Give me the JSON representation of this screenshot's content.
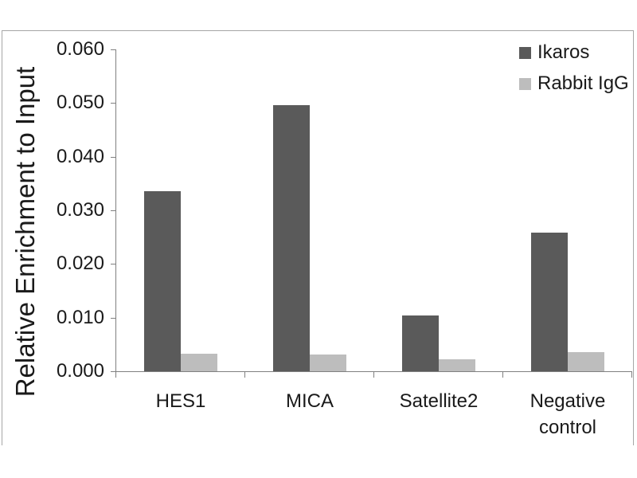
{
  "chart_data": {
    "type": "bar",
    "title": "",
    "xlabel": "",
    "ylabel": "Relative Enrichment to Input",
    "categories": [
      "HES1",
      "MICA",
      "Satellite2",
      "Negative control"
    ],
    "series": [
      {
        "name": "Ikaros",
        "color": "#5a5a5a",
        "values": [
          0.0335,
          0.0496,
          0.0104,
          0.0258
        ]
      },
      {
        "name": "Rabbit IgG",
        "color": "#bdbdbd",
        "values": [
          0.0033,
          0.0031,
          0.0022,
          0.0035
        ]
      }
    ],
    "ylim": [
      0.0,
      0.06
    ],
    "ytick_step": 0.01,
    "ytick_decimals": 3,
    "grid": false,
    "legend_position": "top-right",
    "axis_color": "#808080",
    "frame_color": "#a6a6a6"
  }
}
